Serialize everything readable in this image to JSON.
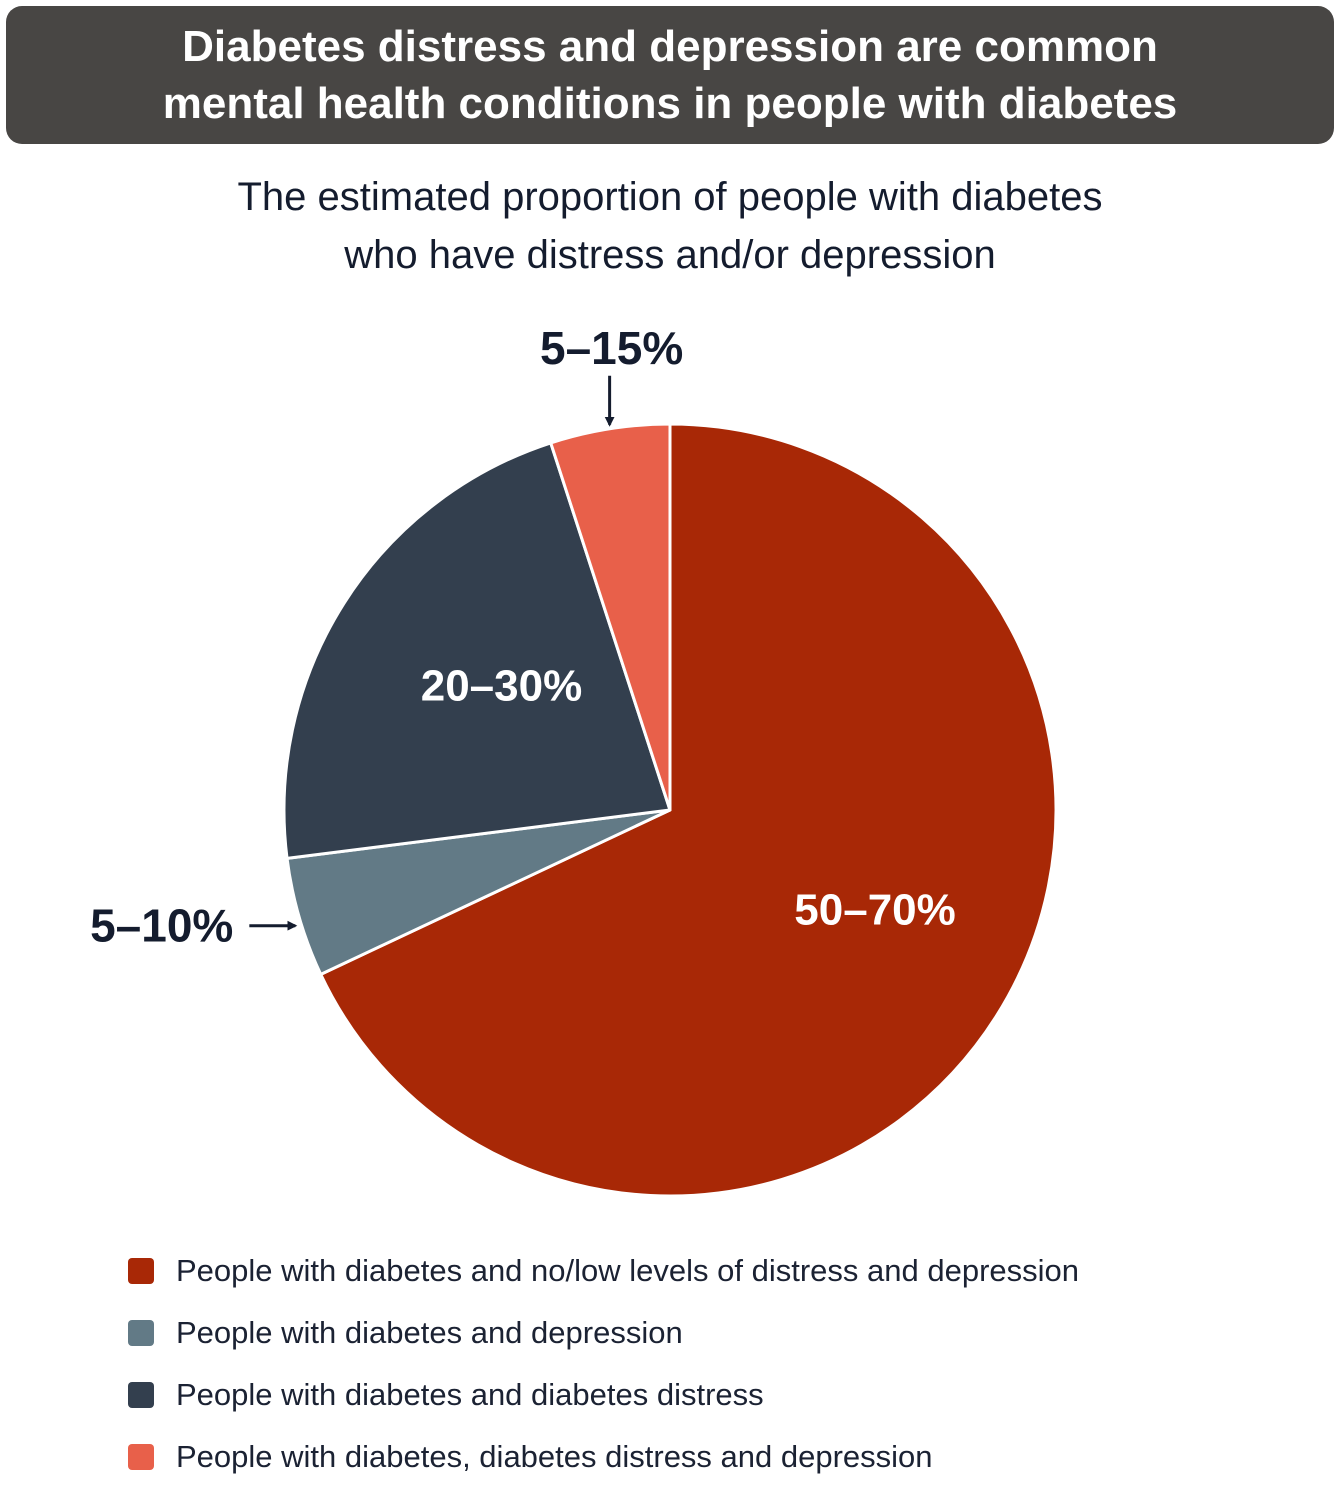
{
  "header": {
    "title_line1": "Diabetes distress and depression are common",
    "title_line2": "mental health conditions in people with diabetes"
  },
  "chart_data": {
    "type": "pie",
    "title": "Diabetes distress and depression are common mental health conditions in people with diabetes",
    "subtitle_line1": "The estimated proportion of people with diabetes",
    "subtitle_line2": "who have distress and/or depression",
    "slices": [
      {
        "name": "People with diabetes and no/low levels of distress and depression",
        "label": "50–70%",
        "value": 68,
        "color": "#a82806"
      },
      {
        "name": "People with diabetes and depression",
        "label": "5–10%",
        "value": 5,
        "color": "#627a86"
      },
      {
        "name": "People with diabetes and diabetes distress",
        "label": "20–30%",
        "value": 22,
        "color": "#333f4e"
      },
      {
        "name": "People with diabetes, diabetes distress and depression",
        "label": "5–15%",
        "value": 5,
        "color": "#e8604a"
      }
    ],
    "start_angle_deg": 0,
    "direction": "clockwise",
    "legend_position": "bottom"
  }
}
